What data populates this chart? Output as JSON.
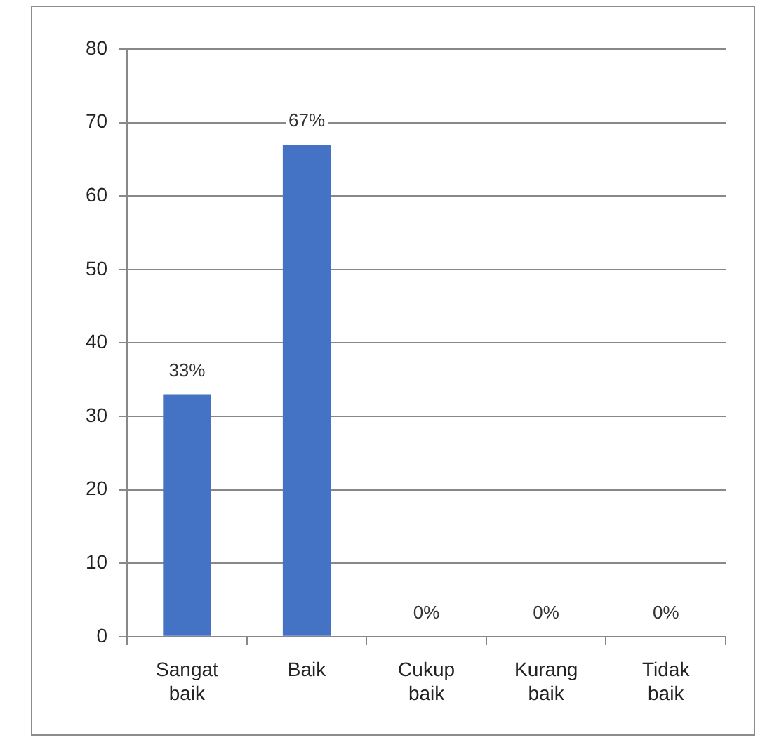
{
  "chart_data": {
    "type": "bar",
    "categories": [
      "Sangat baik",
      "Baik",
      "Cukup baik",
      "Kurang baik",
      "Tidak baik"
    ],
    "values": [
      33,
      67,
      0,
      0,
      0
    ],
    "color": "#4472c4",
    "value_labels": [
      "33%",
      "67%",
      "0%",
      "0%",
      "0%"
    ],
    "ylim": [
      0,
      80
    ],
    "yticks": [
      0,
      10,
      20,
      30,
      40,
      50,
      60,
      70,
      80
    ],
    "grid": "y"
  }
}
